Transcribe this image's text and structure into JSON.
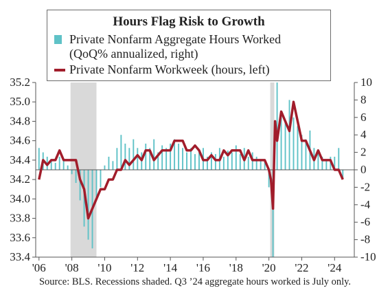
{
  "chart_data": {
    "type": "bar+line",
    "title": "Hours Flag Risk to Growth",
    "colors": {
      "bars": "#5fc2c7",
      "line": "#a11d2b",
      "recession": "#d9d9d9",
      "grid": "#cfcfcf"
    },
    "series": [
      {
        "name": "Private Nonfarm Aggregate Hours Worked (QoQ% annualized, right)",
        "name_lines": [
          "Private Nonfarm Aggregate Hours Worked",
          "(QoQ% annualized, right)"
        ],
        "type": "bar",
        "axis": "right",
        "x": [
          2006.0,
          2006.25,
          2006.5,
          2006.75,
          2007.0,
          2007.25,
          2007.5,
          2007.75,
          2008.0,
          2008.25,
          2008.5,
          2008.75,
          2009.0,
          2009.25,
          2009.5,
          2009.75,
          2010.0,
          2010.25,
          2010.5,
          2010.75,
          2011.0,
          2011.25,
          2011.5,
          2011.75,
          2012.0,
          2012.25,
          2012.5,
          2012.75,
          2013.0,
          2013.25,
          2013.5,
          2013.75,
          2014.0,
          2014.25,
          2014.5,
          2014.75,
          2015.0,
          2015.25,
          2015.5,
          2015.75,
          2016.0,
          2016.25,
          2016.5,
          2016.75,
          2017.0,
          2017.25,
          2017.5,
          2017.75,
          2018.0,
          2018.25,
          2018.5,
          2018.75,
          2019.0,
          2019.25,
          2019.5,
          2019.75,
          2020.0,
          2020.25,
          2020.5,
          2020.75,
          2021.0,
          2021.25,
          2021.5,
          2021.75,
          2022.0,
          2022.25,
          2022.5,
          2022.75,
          2023.0,
          2023.25,
          2023.5,
          2023.75,
          2024.0,
          2024.25,
          2024.5
        ],
        "values": [
          2.5,
          2.0,
          1.5,
          1.0,
          0.8,
          1.5,
          1.2,
          0.5,
          -0.5,
          -1.5,
          -3.5,
          -6.5,
          -8.0,
          -9.0,
          -3.5,
          -2.0,
          0.5,
          1.5,
          1.0,
          2.5,
          4.0,
          3.0,
          2.5,
          3.5,
          2.5,
          2.0,
          3.0,
          2.5,
          3.5,
          2.0,
          2.8,
          2.5,
          3.0,
          3.5,
          3.0,
          2.5,
          2.0,
          2.5,
          1.8,
          2.0,
          2.5,
          1.5,
          2.0,
          1.8,
          2.5,
          1.5,
          2.2,
          2.0,
          2.8,
          1.8,
          2.5,
          1.5,
          2.0,
          1.5,
          1.2,
          1.0,
          -2.0,
          -10.0,
          10.0,
          6.5,
          5.5,
          8.0,
          6.0,
          5.0,
          4.0,
          3.5,
          4.5,
          2.5,
          2.0,
          1.5,
          1.0,
          1.5,
          1.5,
          2.5,
          -1.0
        ]
      },
      {
        "name": "Private Nonfarm Workweek (hours, left)",
        "type": "line",
        "axis": "left",
        "x": [
          2006.0,
          2006.25,
          2006.5,
          2006.75,
          2007.0,
          2007.25,
          2007.5,
          2007.75,
          2008.0,
          2008.25,
          2008.5,
          2008.75,
          2009.0,
          2009.25,
          2009.5,
          2009.75,
          2010.0,
          2010.25,
          2010.5,
          2010.75,
          2011.0,
          2011.25,
          2011.5,
          2011.75,
          2012.0,
          2012.25,
          2012.5,
          2012.75,
          2013.0,
          2013.25,
          2013.5,
          2013.75,
          2014.0,
          2014.25,
          2014.5,
          2014.75,
          2015.0,
          2015.25,
          2015.5,
          2015.75,
          2016.0,
          2016.25,
          2016.5,
          2016.75,
          2017.0,
          2017.25,
          2017.5,
          2017.75,
          2018.0,
          2018.25,
          2018.5,
          2018.75,
          2019.0,
          2019.25,
          2019.5,
          2019.75,
          2020.0,
          2020.125,
          2020.25,
          2020.375,
          2020.5,
          2020.75,
          2021.0,
          2021.25,
          2021.5,
          2021.75,
          2022.0,
          2022.25,
          2022.5,
          2022.75,
          2023.0,
          2023.25,
          2023.5,
          2023.75,
          2024.0,
          2024.25,
          2024.5
        ],
        "values": [
          34.2,
          34.4,
          34.35,
          34.4,
          34.4,
          34.5,
          34.4,
          34.4,
          34.4,
          34.4,
          34.2,
          34.1,
          33.8,
          33.9,
          34.0,
          34.1,
          34.1,
          34.2,
          34.2,
          34.3,
          34.3,
          34.4,
          34.35,
          34.4,
          34.45,
          34.4,
          34.5,
          34.5,
          34.4,
          34.45,
          34.5,
          34.5,
          34.5,
          34.6,
          34.6,
          34.6,
          34.5,
          34.5,
          34.55,
          34.5,
          34.4,
          34.4,
          34.45,
          34.4,
          34.4,
          34.5,
          34.45,
          34.5,
          34.5,
          34.5,
          34.4,
          34.5,
          34.4,
          34.4,
          34.4,
          34.4,
          34.3,
          34.2,
          33.9,
          34.8,
          34.6,
          34.9,
          34.8,
          34.7,
          35.0,
          34.8,
          34.6,
          34.6,
          34.5,
          34.4,
          34.5,
          34.4,
          34.4,
          34.4,
          34.3,
          34.3,
          34.2
        ]
      }
    ],
    "recessions": [
      [
        2007.92,
        2009.5
      ],
      [
        2020.08,
        2020.33
      ]
    ],
    "xlim": [
      2005.8,
      2025.2
    ],
    "x_ticks": [
      2006,
      2008,
      2010,
      2012,
      2014,
      2016,
      2018,
      2020,
      2022,
      2024
    ],
    "x_tick_labels": [
      "'06",
      "'08",
      "'10",
      "'12",
      "'14",
      "'16",
      "'18",
      "'20",
      "'22",
      "'24"
    ],
    "ylim_left": [
      33.4,
      35.2
    ],
    "y_left_ticks": [
      33.4,
      33.6,
      33.8,
      34.0,
      34.2,
      34.4,
      34.6,
      34.8,
      35.0,
      35.2
    ],
    "y_left_tick_labels": [
      "33.4",
      "33.6",
      "33.8",
      "34.0",
      "34.2",
      "34.4",
      "34.6",
      "34.8",
      "35.0",
      "35.2"
    ],
    "ylim_right": [
      -10,
      10
    ],
    "y_right_ticks": [
      -10,
      -8,
      -6,
      -4,
      -2,
      0,
      2,
      4,
      6,
      8,
      10
    ],
    "y_right_tick_labels": [
      "-10",
      "-8",
      "-6",
      "-4",
      "-2",
      "0",
      "2",
      "4",
      "6",
      "8",
      "10"
    ],
    "grid": false,
    "legend_position": "top-center"
  },
  "source_note": "Source: BLS. Recessions shaded. Q3 ’24 aggregate hours worked is July only."
}
